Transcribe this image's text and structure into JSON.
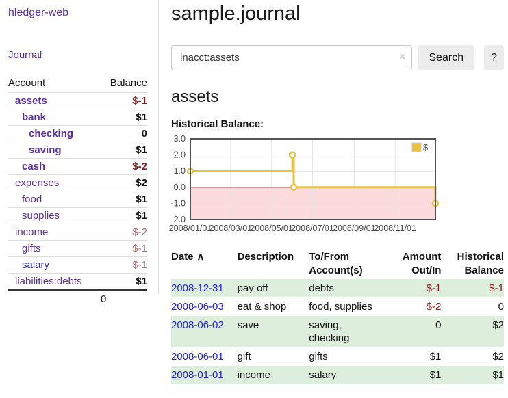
{
  "colors": {
    "link_purple": "#5a2ca0",
    "link_blue": "#2222dd",
    "negative_strong": "#8b1a1a",
    "negative_soft": "#b86c6c",
    "row_stripe_green": "#ddeedd",
    "chart_line_gold": "#e6c14b",
    "legend_swatch": "#edc240",
    "negative_region_pink": "#fbdbdb",
    "zero_line_red": "#a02020"
  },
  "sidebar": {
    "brand": "hledger-web",
    "journal_link": "Journal",
    "accounts": {
      "col_account": "Account",
      "col_balance": "Balance",
      "rows": [
        {
          "label": "assets",
          "indent": 1,
          "bold": true,
          "balance": "$-1",
          "neg": "strong"
        },
        {
          "label": "bank",
          "indent": 2,
          "bold": true,
          "balance": "$1"
        },
        {
          "label": "checking",
          "indent": 3,
          "bold": true,
          "balance": "0"
        },
        {
          "label": "saving",
          "indent": 3,
          "bold": true,
          "balance": "$1"
        },
        {
          "label": "cash",
          "indent": 2,
          "bold": true,
          "balance": "$-2",
          "neg": "strong"
        },
        {
          "label": "expenses",
          "indent": 1,
          "bold": false,
          "balance": "$2"
        },
        {
          "label": "food",
          "indent": 2,
          "bold": false,
          "balance": "$1"
        },
        {
          "label": "supplies",
          "indent": 2,
          "bold": false,
          "balance": "$1"
        },
        {
          "label": "income",
          "indent": 1,
          "bold": false,
          "balance": "$-2",
          "neg": "soft"
        },
        {
          "label": "gifts",
          "indent": 2,
          "bold": false,
          "balance": "$-1",
          "neg": "soft"
        },
        {
          "label": "salary",
          "indent": 2,
          "bold": false,
          "balance": "$-1",
          "neg": "soft",
          "blue": true
        },
        {
          "label": "liabilities:debts",
          "indent": 1,
          "bold": false,
          "balance": "$1"
        }
      ],
      "total": "0"
    }
  },
  "main": {
    "title": "sample.journal",
    "search": {
      "value": "inacct:assets",
      "clear_icon": "×",
      "search_button": "Search",
      "help_button": "?"
    },
    "account_title": "assets",
    "chart_heading": "Historical Balance:"
  },
  "chart_data": {
    "type": "line",
    "step": true,
    "title": "Historical Balance",
    "legend_label": "$",
    "legend_position": "top-right",
    "grid": true,
    "x": [
      "2008-01-01",
      "2008-06-01",
      "2008-06-03",
      "2008-12-31"
    ],
    "y": [
      1,
      2,
      0,
      -1
    ],
    "xrange": [
      "2008-01-01",
      "2008-12-31"
    ],
    "ylim": [
      -2,
      3
    ],
    "yticks": [
      3.0,
      2.0,
      1.0,
      0.0,
      -1.0,
      -2.0
    ],
    "xtick_labels": [
      "2008/01/01",
      "2008/03/01",
      "2008/05/01",
      "2008/07/01",
      "2008/09/01",
      "2008/11/01"
    ]
  },
  "register": {
    "sort_icon": "∧",
    "columns": {
      "date": "Date",
      "description": "Description",
      "accounts": "To/From Account(s)",
      "amount": "Amount Out/In",
      "balance": "Historical Balance"
    },
    "rows": [
      {
        "date": "2008-12-31",
        "description": "pay off",
        "accounts": "debts",
        "amount": "$-1",
        "amount_negative": true,
        "balance": "$-1",
        "balance_negative": true,
        "shaded": true
      },
      {
        "date": "2008-06-03",
        "description": "eat & shop",
        "accounts": "food, supplies",
        "amount": "$-2",
        "amount_negative": true,
        "balance": "0",
        "balance_negative": false,
        "shaded": false
      },
      {
        "date": "2008-06-02",
        "description": "save",
        "accounts": "saving, checking",
        "amount": "0",
        "amount_negative": false,
        "balance": "$2",
        "balance_negative": false,
        "shaded": true
      },
      {
        "date": "2008-06-01",
        "description": "gift",
        "accounts": "gifts",
        "amount": "$1",
        "amount_negative": false,
        "balance": "$2",
        "balance_negative": false,
        "shaded": false
      },
      {
        "date": "2008-01-01",
        "description": "income",
        "accounts": "salary",
        "amount": "$1",
        "amount_negative": false,
        "balance": "$1",
        "balance_negative": false,
        "shaded": true
      }
    ]
  }
}
